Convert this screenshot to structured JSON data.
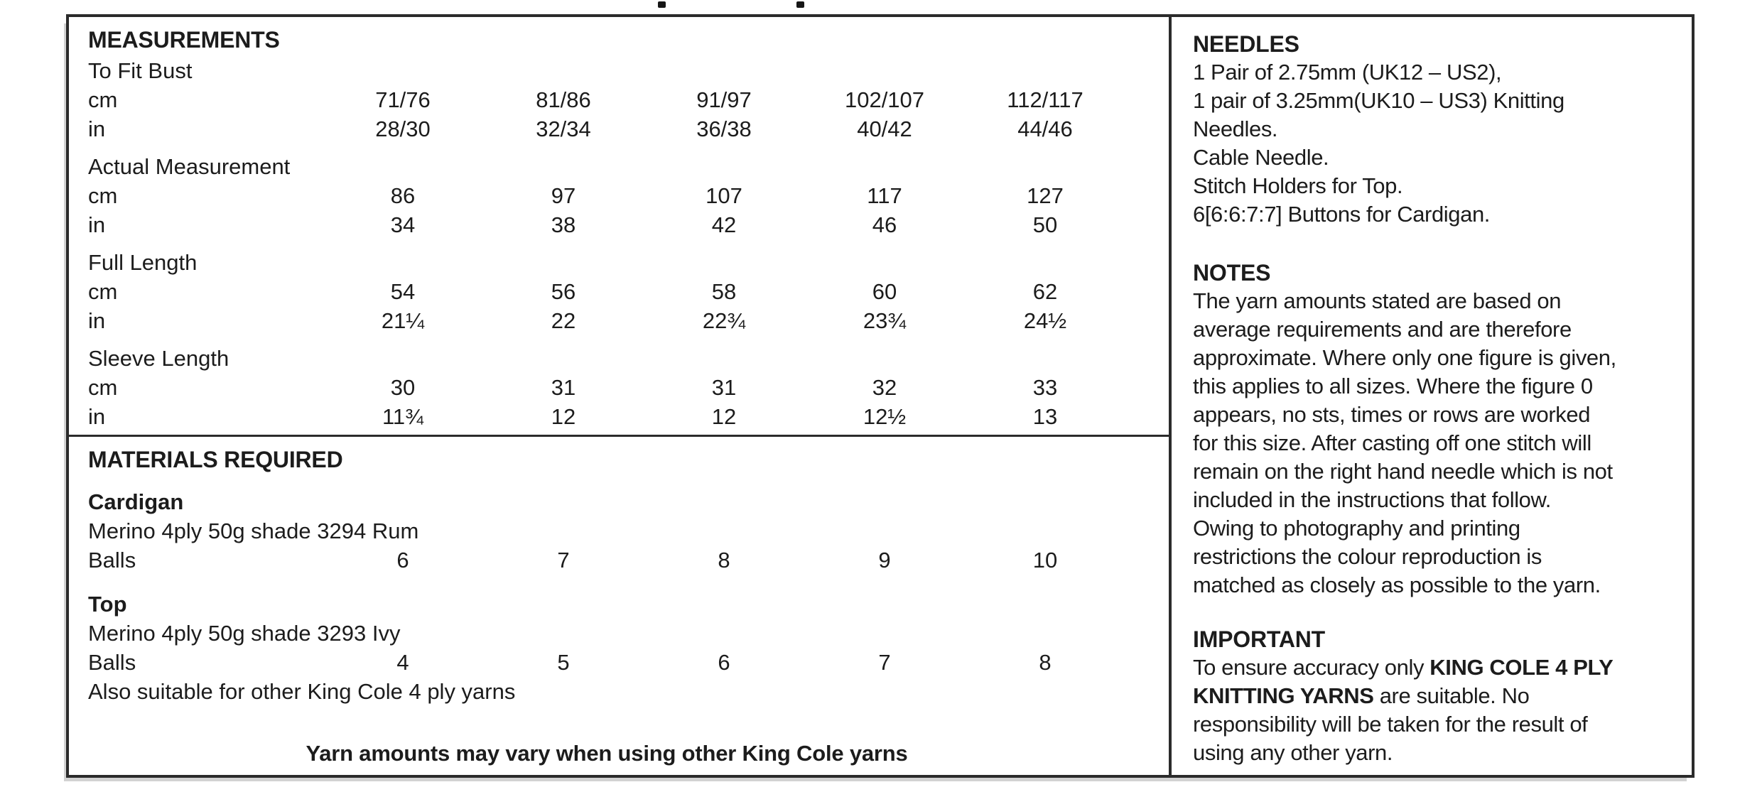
{
  "page": {
    "background": "#ffffff",
    "text_color": "#1c1c1c",
    "border_color": "#2b2b2b"
  },
  "measurements": {
    "title": "MEASUREMENTS",
    "groups": [
      {
        "label": "To Fit Bust",
        "rows": [
          {
            "unit": "cm",
            "values": [
              "71/76",
              "81/86",
              "91/97",
              "102/107",
              "112/117"
            ]
          },
          {
            "unit": "in",
            "values": [
              "28/30",
              "32/34",
              "36/38",
              "40/42",
              "44/46"
            ]
          }
        ]
      },
      {
        "label": "Actual Measurement",
        "rows": [
          {
            "unit": "cm",
            "values": [
              "86",
              "97",
              "107",
              "117",
              "127"
            ]
          },
          {
            "unit": "in",
            "values": [
              "34",
              "38",
              "42",
              "46",
              "50"
            ]
          }
        ]
      },
      {
        "label": "Full Length",
        "rows": [
          {
            "unit": "cm",
            "values": [
              "54",
              "56",
              "58",
              "60",
              "62"
            ]
          },
          {
            "unit": "in",
            "values": [
              "21¼",
              "22",
              "22¾",
              "23¾",
              "24½"
            ]
          }
        ]
      },
      {
        "label": "Sleeve Length",
        "rows": [
          {
            "unit": "cm",
            "values": [
              "30",
              "31",
              "31",
              "32",
              "33"
            ]
          },
          {
            "unit": "in",
            "values": [
              "11¾",
              "12",
              "12",
              "12½",
              "13"
            ]
          }
        ]
      }
    ]
  },
  "materials": {
    "title": "MATERIALS REQUIRED",
    "items": [
      {
        "name": "Cardigan",
        "yarn": "Merino 4ply 50g shade 3294 Rum",
        "balls_label": "Balls",
        "balls": [
          "6",
          "7",
          "8",
          "9",
          "10"
        ],
        "note": ""
      },
      {
        "name": "Top",
        "yarn": "Merino 4ply 50g shade 3293 Ivy",
        "balls_label": "Balls",
        "balls": [
          "4",
          "5",
          "6",
          "7",
          "8"
        ],
        "note": "Also suitable for other King Cole 4 ply yarns"
      }
    ],
    "footer": "Yarn amounts may vary when using other King Cole yarns"
  },
  "needles": {
    "title": "NEEDLES",
    "lines": [
      "1 Pair of 2.75mm (UK12 – US2),",
      "1 pair of 3.25mm(UK10 – US3) Knitting",
      "Needles.",
      "Cable Needle.",
      "Stitch Holders for Top.",
      "6[6:6:7:7] Buttons for Cardigan."
    ]
  },
  "notes": {
    "title": "NOTES",
    "lines": [
      "The yarn amounts stated are based on",
      "average requirements and are therefore",
      "approximate. Where only one figure is given,",
      "this applies to all sizes. Where the figure 0",
      "appears, no sts, times or rows are worked",
      "for this size. After casting off one stitch will",
      "remain on the right hand needle which is not",
      "included in the instructions that follow.",
      "Owing to photography and printing",
      "restrictions the colour reproduction is",
      "matched as closely as possible to the yarn."
    ]
  },
  "important": {
    "title": "IMPORTANT",
    "lines": [
      [
        {
          "text": "To ensure accuracy only ",
          "bold": false
        },
        {
          "text": "KING COLE 4 PLY",
          "bold": true
        }
      ],
      [
        {
          "text": "KNITTING YARNS",
          "bold": true
        },
        {
          "text": " are suitable. No",
          "bold": false
        }
      ],
      [
        {
          "text": "responsibility will be taken for the result of",
          "bold": false
        }
      ],
      [
        {
          "text": "using any other yarn.",
          "bold": false
        }
      ]
    ]
  }
}
